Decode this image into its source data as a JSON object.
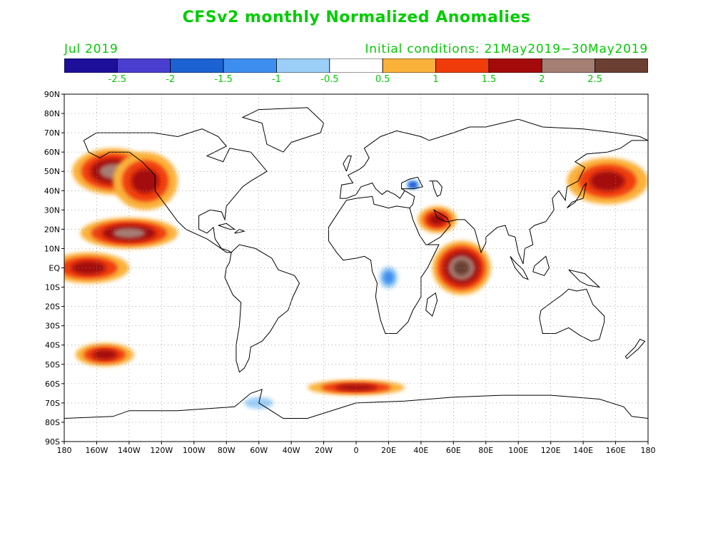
{
  "title": "CFSv2 monthly Normalized Anomalies",
  "month": "Jul 2019",
  "initial_conditions": "Initial conditions: 21May2019−30May2019",
  "colors": {
    "text_green": "#00cc00",
    "land_outline": "#000000",
    "grid": "#888888"
  },
  "colorbar": {
    "colors": [
      "#1e0f9a",
      "#4a3ed0",
      "#1c62d3",
      "#3e8ef0",
      "#9ccff7",
      "#ffffff",
      "#fbb23a",
      "#f03c0a",
      "#a40a0a",
      "#a57e74",
      "#6b3f32"
    ],
    "ticks": [
      "-2.5",
      "-2",
      "-1.5",
      "-1",
      "-0.5",
      "0.5",
      "1",
      "1.5",
      "2",
      "2.5"
    ]
  },
  "map": {
    "lat_labels": [
      "90N",
      "80N",
      "70N",
      "60N",
      "50N",
      "40N",
      "30N",
      "20N",
      "10N",
      "EQ",
      "10S",
      "20S",
      "30S",
      "40S",
      "50S",
      "60S",
      "70S",
      "80S",
      "90S"
    ],
    "lon_labels": [
      "180",
      "160W",
      "140W",
      "120W",
      "100W",
      "80W",
      "60W",
      "40W",
      "20W",
      "0",
      "20E",
      "40E",
      "60E",
      "80E",
      "100E",
      "120E",
      "140E",
      "160E",
      "180"
    ],
    "anomaly_regions": [
      {
        "label": "North Pacific warm anomaly",
        "level": 2.0,
        "center": [
          -150,
          50
        ],
        "radius": [
          25,
          12
        ]
      },
      {
        "label": "NE Pacific warm anomaly",
        "level": 1.5,
        "center": [
          -130,
          45
        ],
        "radius": [
          20,
          15
        ]
      },
      {
        "label": "Tropical E Pacific warm anomaly",
        "level": 2.0,
        "center": [
          -140,
          18
        ],
        "radius": [
          30,
          8
        ]
      },
      {
        "label": "Equatorial Pacific warm anomaly",
        "level": 1.5,
        "center": [
          -165,
          0
        ],
        "radius": [
          25,
          8
        ]
      },
      {
        "label": "Indian Ocean warm anomaly",
        "level": 2.5,
        "center": [
          65,
          0
        ],
        "radius": [
          18,
          14
        ]
      },
      {
        "label": "Arabian region warm anomaly",
        "level": 1.5,
        "center": [
          50,
          25
        ],
        "radius": [
          12,
          7
        ]
      },
      {
        "label": "Western North Pacific warm anomaly",
        "level": 1.5,
        "center": [
          155,
          45
        ],
        "radius": [
          25,
          12
        ]
      },
      {
        "label": "Central Africa cool anomaly",
        "level": -1.5,
        "center": [
          20,
          -5
        ],
        "radius": [
          8,
          8
        ]
      },
      {
        "label": "Black Sea cool anomaly",
        "level": -2.5,
        "center": [
          35,
          43
        ],
        "radius": [
          5,
          3
        ]
      },
      {
        "label": "South Pacific warm anomaly",
        "level": 1.5,
        "center": [
          -155,
          -45
        ],
        "radius": [
          18,
          6
        ]
      },
      {
        "label": "Southern Ocean warm anomaly",
        "level": 1.5,
        "center": [
          0,
          -62
        ],
        "radius": [
          30,
          4
        ]
      },
      {
        "label": "Antarctic coast cool anomaly",
        "level": -1.0,
        "center": [
          -60,
          -70
        ],
        "radius": [
          15,
          5
        ]
      }
    ]
  }
}
